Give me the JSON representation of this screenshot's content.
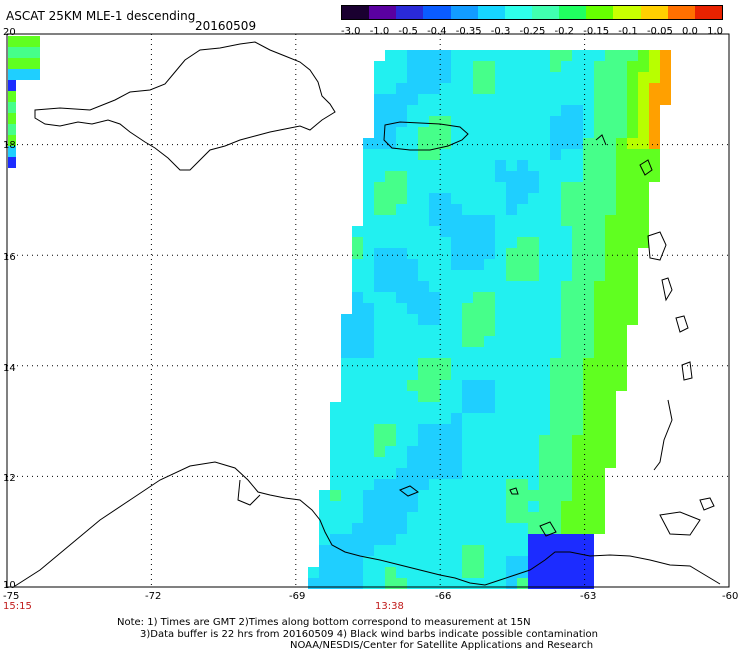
{
  "header": {
    "title": "ASCAT 25KM MLE-1 descending",
    "date": "20160509"
  },
  "colorbar": {
    "labels": [
      "-3.0",
      "-1.0",
      "-0.5",
      "-0.4",
      "-0.35",
      "-0.3",
      "-0.25",
      "-0.2",
      "-0.15",
      "-0.1",
      "-0.05",
      "0.0",
      "1.0"
    ],
    "colors": [
      "#1a0030",
      "#5a00a0",
      "#2a2ad8",
      "#0a5cff",
      "#129cff",
      "#16d6ff",
      "#2effea",
      "#40ffb0",
      "#20ff60",
      "#66ff00",
      "#c8ff00",
      "#ffd000",
      "#ff7000",
      "#e82200"
    ]
  },
  "map": {
    "lon_labels": [
      "-75",
      "-72",
      "-69",
      "-66",
      "-63",
      "-60"
    ],
    "lat_labels": [
      "20",
      "18",
      "16",
      "14",
      "12",
      "10"
    ],
    "lon_range": [
      -75,
      -60
    ],
    "lat_range": [
      10,
      20
    ],
    "swath_colors": {
      "core": "#22f0f0",
      "blue": "#1fcfff",
      "green": "#46ff8a",
      "lime": "#60ff20",
      "yellow": "#b8ff00",
      "orange": "#ffa000",
      "deep": "#1c2cff",
      "coast": "#000000"
    }
  },
  "times": {
    "left": "15:15",
    "center": "13:38"
  },
  "notes": {
    "line1": "Note: 1) Times are GMT 2)Times along bottom correspond to measurement at 15N",
    "line2": "3)Data buffer is 22 hrs from 20160509 4) Black wind barbs indicate possible contamination",
    "line3": "NOAA/NESDIS/Center for Satellite Applications and Research"
  }
}
